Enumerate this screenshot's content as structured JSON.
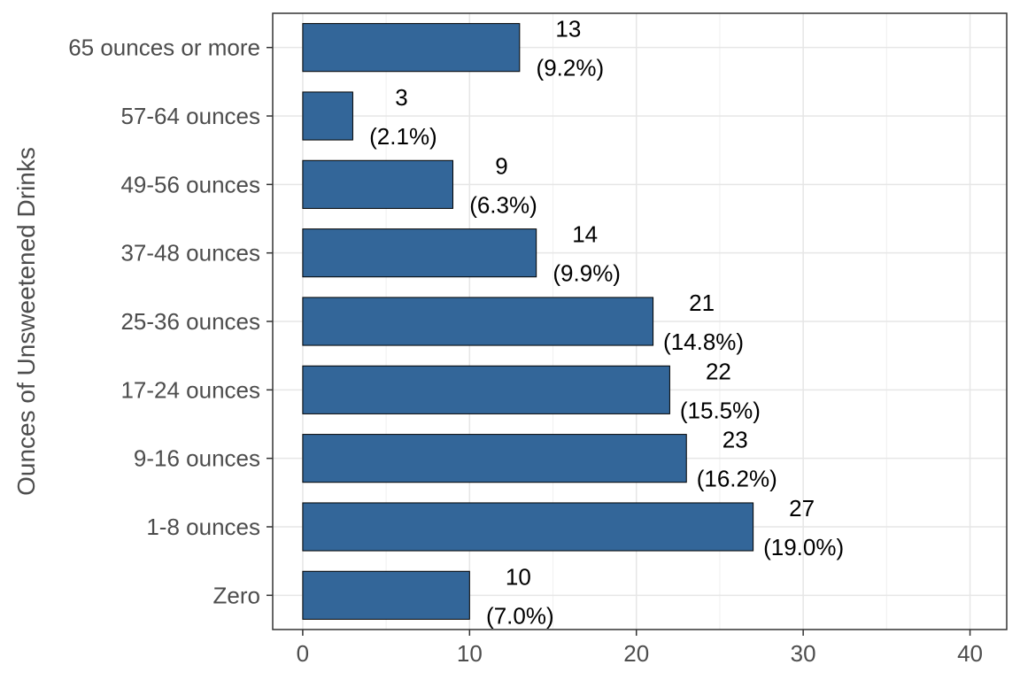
{
  "chart_data": {
    "type": "bar",
    "orientation": "horizontal",
    "title": "",
    "xlabel": "",
    "ylabel": "Ounces of Unsweetened Drinks",
    "categories": [
      "Zero",
      "1-8 ounces",
      "9-16 ounces",
      "17-24 ounces",
      "25-36 ounces",
      "37-48 ounces",
      "49-56 ounces",
      "57-64 ounces",
      "65 ounces or more"
    ],
    "values": [
      10,
      27,
      23,
      22,
      21,
      14,
      9,
      3,
      13
    ],
    "percent_labels": [
      "(7.0%)",
      "(19.0%)",
      "(16.2%)",
      "(15.5%)",
      "(14.8%)",
      "(9.9%)",
      "(6.3%)",
      "(2.1%)",
      "(9.2%)"
    ],
    "xlim": [
      -1.8,
      42.2
    ],
    "xticks": [
      0,
      10,
      20,
      30,
      40
    ],
    "grid": true,
    "legend": "none",
    "bar_color": "#336699"
  }
}
